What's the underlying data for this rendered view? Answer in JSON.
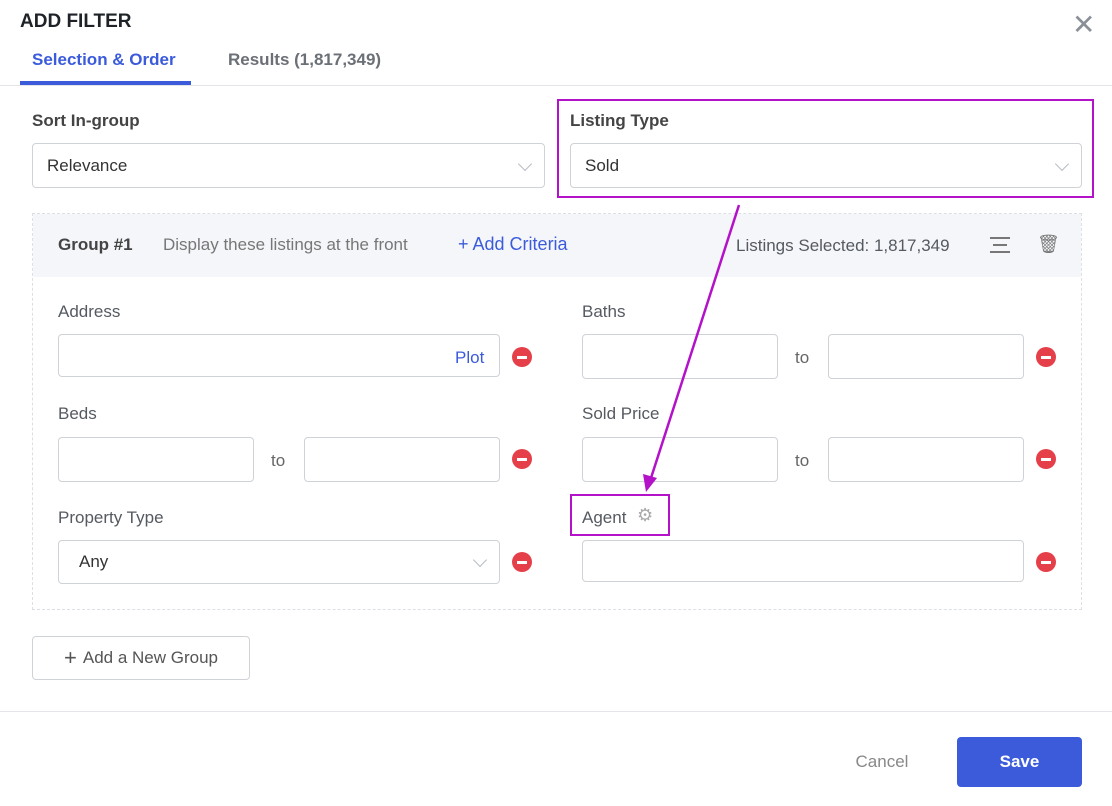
{
  "dialog": {
    "title": "ADD FILTER"
  },
  "tabs": [
    {
      "label": "Selection & Order",
      "active": true
    },
    {
      "label": "Results (1,817,349)",
      "active": false
    }
  ],
  "sort": {
    "label": "Sort In-group",
    "value": "Relevance"
  },
  "listing_type": {
    "label": "Listing Type",
    "value": "Sold"
  },
  "group": {
    "title": "Group #1",
    "description": "Display these listings at the front",
    "add_criteria": "Add Criteria",
    "listings_selected": "Listings Selected: 1,817,349"
  },
  "fields": {
    "address": {
      "label": "Address",
      "value": "",
      "plot": "Plot"
    },
    "baths": {
      "label": "Baths",
      "from": "",
      "to_label": "to",
      "to": ""
    },
    "beds": {
      "label": "Beds",
      "from": "",
      "to_label": "to",
      "to": ""
    },
    "sold_price": {
      "label": "Sold Price",
      "from": "",
      "to_label": "to",
      "to": ""
    },
    "property_type": {
      "label": "Property Type",
      "value": "Any"
    },
    "agent": {
      "label": "Agent",
      "value": ""
    }
  },
  "add_group": "Add a New Group",
  "footer": {
    "cancel": "Cancel",
    "save": "Save"
  },
  "colors": {
    "accent": "#3b5bdb",
    "annotation": "#b312c9",
    "remove": "#e5404a"
  }
}
